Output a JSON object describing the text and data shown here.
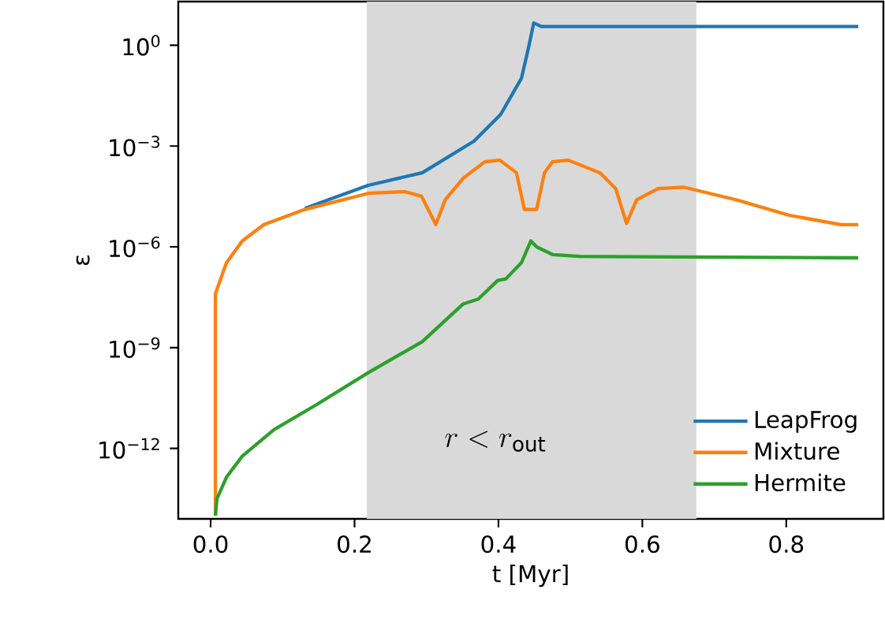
{
  "chart_data": {
    "type": "line",
    "xlabel": "t [Myr]",
    "ylabel": "ε",
    "log": "y",
    "xlim": [
      -0.045,
      0.935
    ],
    "ylim": [
      8e-15,
      20
    ],
    "xticks": [
      {
        "value": 0,
        "label": "0.0"
      },
      {
        "value": 0.2,
        "label": "0.2"
      },
      {
        "value": 0.4,
        "label": "0.4"
      },
      {
        "value": 0.6,
        "label": "0.6"
      },
      {
        "value": 0.8,
        "label": "0.8"
      }
    ],
    "yticks": [
      {
        "value": 1,
        "label": "10$^{0}$"
      },
      {
        "value": 0.001,
        "label": "10$^{−3}$"
      },
      {
        "value": 1e-06,
        "label": "10$^{−6}$"
      },
      {
        "value": 1e-09,
        "label": "10$^{−9}$"
      },
      {
        "value": 1e-12,
        "label": "10$^{−12}$"
      }
    ],
    "legend": "bottom right",
    "grid": false,
    "marker": "none",
    "line_style": "solid",
    "bands": [
      {
        "axis": "x",
        "from": 0.217,
        "to": 0.675,
        "color": "#d9d9d9"
      }
    ],
    "annotations": [
      "r<r_{\\mathrm{out}}"
    ],
    "series": [
      {
        "name": "LeapFrog",
        "color": "#1f77b4",
        "x": [
          0.131,
          0.219,
          0.294,
          0.366,
          0.403,
          0.432,
          0.442,
          0.449,
          0.46,
          0.9
        ],
        "values": [
          1.4e-05,
          6.8e-05,
          0.00016,
          0.0014,
          0.0087,
          0.105,
          0.89,
          4.6,
          3.6,
          3.6
        ]
      },
      {
        "name": "Mixture",
        "color": "#ff7f0e",
        "x": [
          0.0066,
          0.0066,
          0.022,
          0.044,
          0.074,
          0.131,
          0.219,
          0.27,
          0.293,
          0.313,
          0.326,
          0.351,
          0.381,
          0.402,
          0.425,
          0.436,
          0.453,
          0.464,
          0.475,
          0.497,
          0.541,
          0.563,
          0.578,
          0.592,
          0.622,
          0.657,
          0.731,
          0.804,
          0.876,
          0.9
        ],
        "values": [
          1e-14,
          4e-08,
          3.4e-07,
          1.5e-06,
          4.6e-06,
          1.3e-05,
          3.9e-05,
          4.4e-05,
          3.2e-05,
          4.6e-06,
          2.5e-05,
          0.00011,
          0.00034,
          0.00038,
          0.00016,
          1.3e-05,
          1.3e-05,
          0.00016,
          0.00034,
          0.00038,
          0.00016,
          5.4e-05,
          5e-06,
          2.5e-05,
          5.4e-05,
          6e-05,
          2.5e-05,
          8.7e-06,
          4.6e-06,
          4.6e-06
        ]
      },
      {
        "name": "Hermite",
        "color": "#2ca02c",
        "x": [
          0.0066,
          0.0088,
          0.022,
          0.044,
          0.088,
          0.147,
          0.219,
          0.294,
          0.351,
          0.372,
          0.399,
          0.41,
          0.432,
          0.445,
          0.453,
          0.475,
          0.513,
          0.9
        ],
        "values": [
          1e-14,
          3.2e-14,
          1.4e-13,
          5.9e-13,
          3.6e-12,
          2e-11,
          1.8e-10,
          1.5e-09,
          2e-08,
          2.8e-08,
          1e-07,
          1.1e-07,
          3.4e-07,
          1.5e-06,
          1e-06,
          5.9e-07,
          5.2e-07,
          4.7e-07
        ]
      }
    ]
  }
}
